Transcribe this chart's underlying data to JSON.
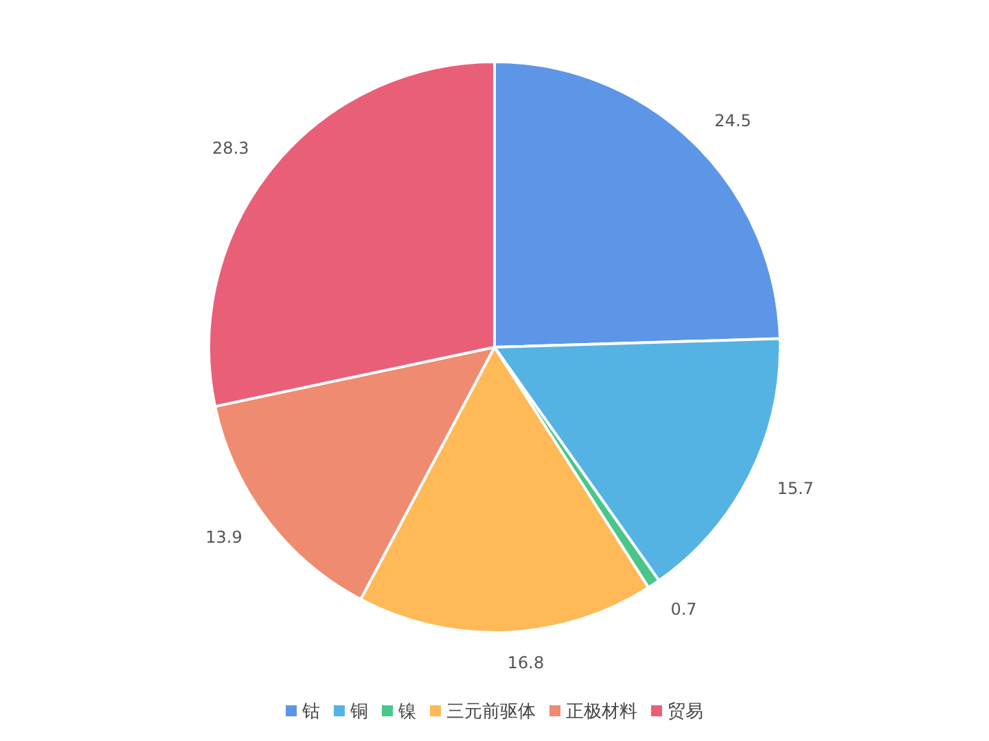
{
  "chart_data": {
    "type": "pie",
    "categories": [
      "钴",
      "铜",
      "镍",
      "三元前驱体",
      "正极材料",
      "贸易"
    ],
    "values": [
      24.5,
      15.7,
      0.7,
      16.8,
      13.9,
      28.3
    ],
    "colors": [
      "#5d96e6",
      "#55b3e3",
      "#4ac68a",
      "#ffb957",
      "#ee8b70",
      "#ea5f78"
    ],
    "data_labels": true,
    "legend": "bottom"
  }
}
